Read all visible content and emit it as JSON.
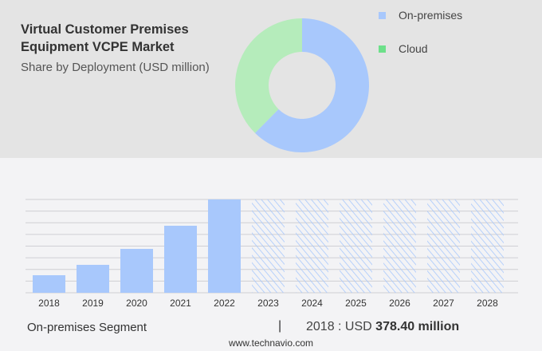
{
  "title": "Virtual Customer Premises Equipment VCPE Market",
  "subtitle": "Share by Deployment (USD million)",
  "colors": {
    "on_premises": "#a8c8fc",
    "cloud": "#b5ecbb",
    "cloud_legend": "#6de08a",
    "top_bg": "#e4e4e4",
    "bottom_bg": "#f3f3f5"
  },
  "chart_data": [
    {
      "type": "pie",
      "subtype": "donut",
      "legend_position": "right",
      "slices": [
        {
          "name": "On-premises",
          "value": 62.4
        },
        {
          "name": "Cloud",
          "value": 37.6
        }
      ]
    },
    {
      "type": "bar",
      "grid": true,
      "categories": [
        "2018",
        "2019",
        "2020",
        "2021",
        "2022",
        "2023",
        "2024",
        "2025",
        "2026",
        "2027",
        "2028"
      ],
      "values": [
        378.4,
        602,
        946,
        1445,
        2012,
        null,
        null,
        null,
        null,
        null,
        null
      ],
      "forecast_categories": [
        "2023",
        "2024",
        "2025",
        "2026",
        "2027",
        "2028"
      ],
      "forecast_style": "hatched"
    }
  ],
  "footer": {
    "segment": "On-premises Segment",
    "separator": "|",
    "year_label": "2018 : USD",
    "value": "378.40 million",
    "site": "www.technavio.com"
  }
}
